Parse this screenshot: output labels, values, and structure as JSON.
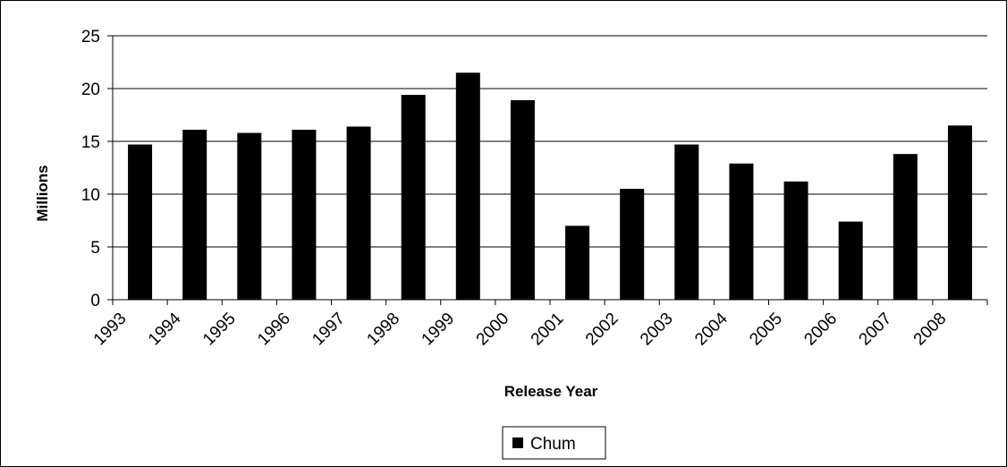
{
  "chart_data": {
    "type": "bar",
    "categories": [
      "1993",
      "1994",
      "1995",
      "1996",
      "1997",
      "1998",
      "1999",
      "2000",
      "2001",
      "2002",
      "2003",
      "2004",
      "2005",
      "2006",
      "2007",
      "2008"
    ],
    "series": [
      {
        "name": "Chum",
        "values": [
          14.7,
          16.1,
          15.8,
          16.1,
          16.4,
          19.4,
          21.5,
          18.9,
          7.0,
          10.5,
          14.7,
          12.9,
          11.2,
          7.4,
          13.8,
          16.5
        ]
      }
    ],
    "xlabel": "Release Year",
    "ylabel": "Millions",
    "ylim": [
      0,
      25
    ],
    "yticks": [
      0,
      5,
      10,
      15,
      20,
      25
    ],
    "grid": true,
    "legend_position": "bottom-center",
    "colors": {
      "bar": "#000000",
      "grid": "#000000",
      "background": "#ffffff"
    }
  }
}
